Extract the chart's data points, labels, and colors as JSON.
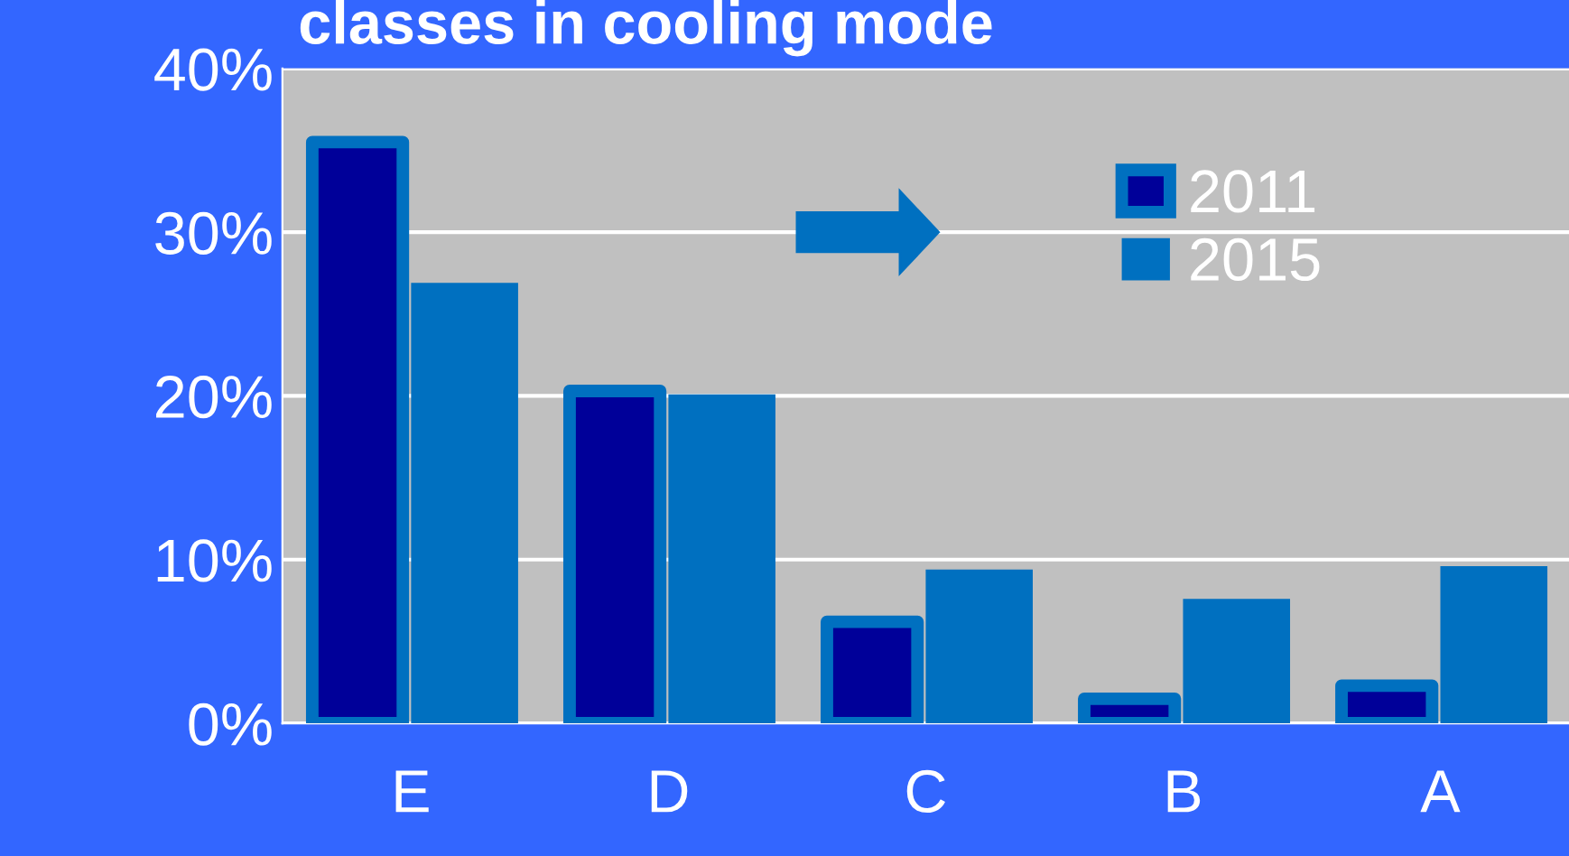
{
  "chart_data": {
    "type": "bar",
    "title": "classes in cooling mode",
    "categories": [
      "E",
      "D",
      "C",
      "B",
      "A"
    ],
    "series": [
      {
        "name": "2011",
        "color": "#000099",
        "values": [
          35.5,
          20.3,
          6.2,
          1.5,
          2.3
        ]
      },
      {
        "name": "2015",
        "color": "#0070c0",
        "values": [
          26.9,
          20.1,
          9.4,
          7.6,
          9.6
        ]
      }
    ],
    "ylim": [
      0,
      40
    ],
    "yticks": [
      {
        "value": 0,
        "label": "0%"
      },
      {
        "value": 10,
        "label": "10%"
      },
      {
        "value": 20,
        "label": "20%"
      },
      {
        "value": 30,
        "label": "30%"
      },
      {
        "value": 40,
        "label": "40%"
      }
    ],
    "grid": "y",
    "legend": "top right"
  }
}
